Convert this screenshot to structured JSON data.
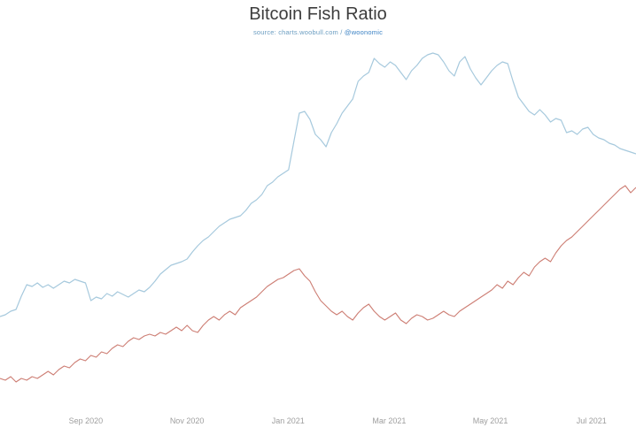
{
  "chart_data": {
    "type": "line",
    "title": "Bitcoin Fish Ratio",
    "subtitle_prefix": "source: charts.woobull.com / ",
    "subtitle_handle": "@woonomic",
    "x_tick_labels": [
      "Sep 2020",
      "Nov 2020",
      "Jan 2021",
      "Mar 2021",
      "May 2021",
      "Jul 2021"
    ],
    "ylim": [
      0,
      410
    ],
    "grid": false,
    "legend": "none",
    "background": "#ffffff",
    "axis_label_color": "#9e9e9e",
    "series": [
      {
        "name": "blue",
        "color": "#a6c9dd",
        "stroke_width": 1.2,
        "values": [
          102,
          104,
          108,
          110,
          125,
          138,
          136,
          140,
          135,
          138,
          134,
          138,
          142,
          140,
          144,
          142,
          140,
          120,
          124,
          122,
          128,
          125,
          130,
          127,
          124,
          128,
          132,
          130,
          135,
          142,
          150,
          155,
          160,
          162,
          164,
          167,
          175,
          182,
          188,
          192,
          198,
          204,
          208,
          212,
          214,
          216,
          222,
          230,
          234,
          240,
          250,
          254,
          260,
          264,
          268,
          300,
          332,
          334,
          325,
          308,
          302,
          294,
          310,
          320,
          332,
          340,
          348,
          368,
          374,
          378,
          394,
          388,
          384,
          390,
          386,
          378,
          370,
          380,
          386,
          394,
          398,
          400,
          398,
          390,
          380,
          374,
          390,
          396,
          382,
          372,
          364,
          372,
          380,
          386,
          390,
          388,
          368,
          350,
          342,
          334,
          330,
          336,
          330,
          322,
          326,
          324,
          310,
          312,
          308,
          314,
          316,
          308,
          304,
          302,
          298,
          296,
          292,
          290,
          288,
          286
        ]
      },
      {
        "name": "red",
        "color": "#cd7e74",
        "stroke_width": 1.1,
        "values": [
          32,
          30,
          34,
          28,
          32,
          30,
          34,
          32,
          36,
          40,
          36,
          42,
          46,
          44,
          50,
          54,
          52,
          58,
          56,
          62,
          60,
          66,
          70,
          68,
          74,
          78,
          76,
          80,
          82,
          80,
          84,
          82,
          86,
          90,
          86,
          92,
          86,
          84,
          92,
          98,
          102,
          98,
          104,
          108,
          104,
          112,
          116,
          120,
          124,
          130,
          136,
          140,
          144,
          146,
          150,
          154,
          156,
          148,
          142,
          130,
          120,
          114,
          108,
          104,
          108,
          102,
          98,
          106,
          112,
          116,
          108,
          102,
          98,
          102,
          106,
          98,
          94,
          100,
          104,
          102,
          98,
          100,
          104,
          108,
          104,
          102,
          108,
          112,
          116,
          120,
          124,
          128,
          132,
          138,
          134,
          142,
          138,
          146,
          152,
          148,
          158,
          164,
          168,
          164,
          174,
          182,
          188,
          192,
          198,
          204,
          210,
          216,
          222,
          228,
          234,
          240,
          246,
          250,
          242,
          248
        ]
      }
    ]
  }
}
